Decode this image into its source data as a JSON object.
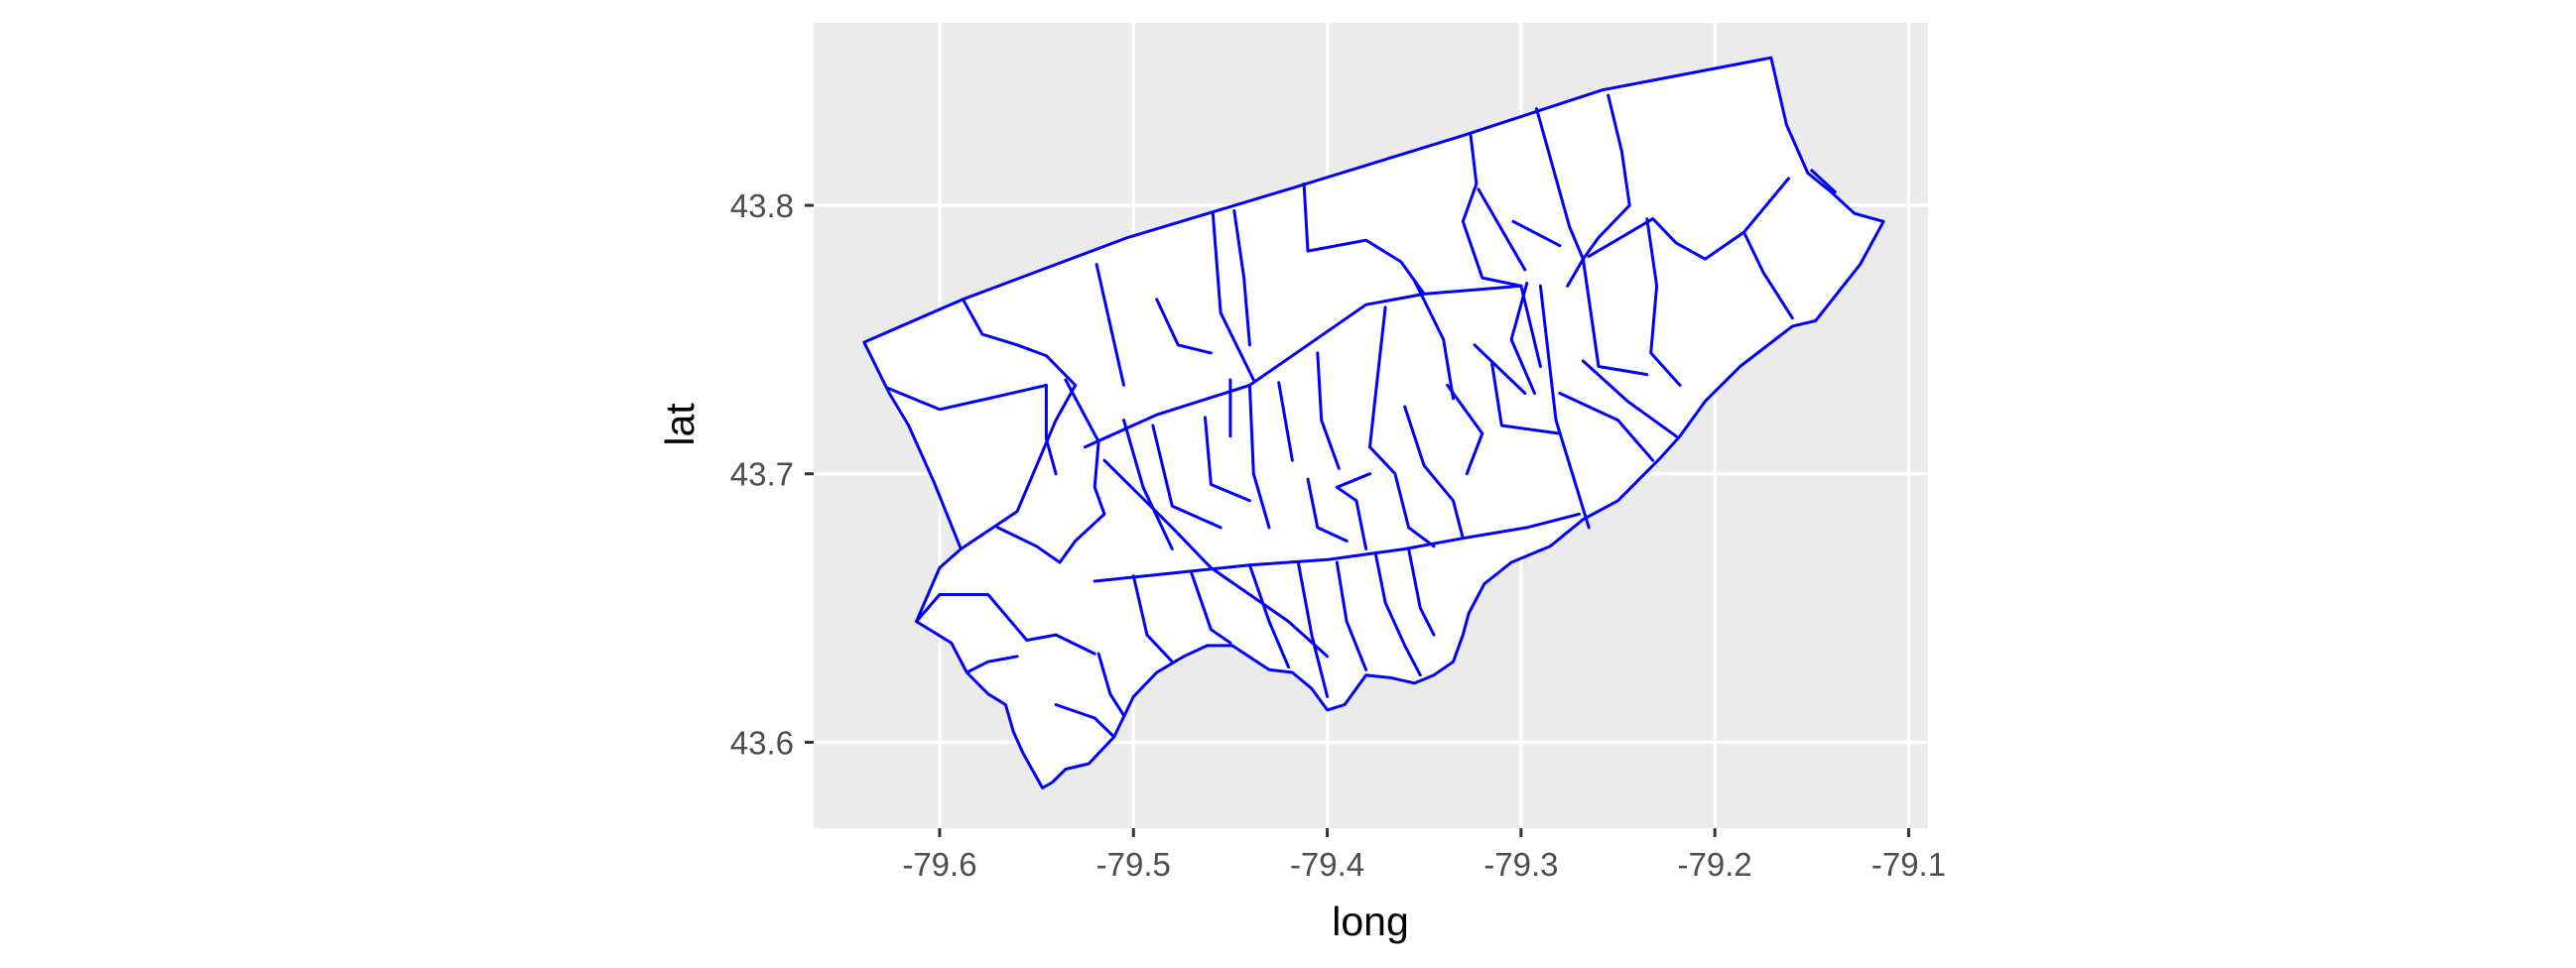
{
  "chart_data": {
    "type": "map",
    "xlabel": "long",
    "ylabel": "lat",
    "xlim": [
      -79.665,
      -79.09
    ],
    "ylim": [
      43.568,
      43.868
    ],
    "x_ticks": [
      -79.6,
      -79.5,
      -79.4,
      -79.3,
      -79.2,
      -79.1
    ],
    "y_ticks": [
      43.6,
      43.7,
      43.8
    ],
    "x_tick_labels": [
      "-79.6",
      "-79.5",
      "-79.4",
      "-79.3",
      "-79.2",
      "-79.1"
    ],
    "y_tick_labels": [
      "43.6",
      "43.7",
      "43.8"
    ],
    "grid": true,
    "legend": "none",
    "colors": {
      "panel_background": "#EBEBEB",
      "grid_major": "#FFFFFF",
      "region_fill": "#FFFFFF",
      "region_outline": "#0000FF"
    },
    "regions": {
      "outline": [
        [
          -79.639,
          43.749
        ],
        [
          -79.588,
          43.765
        ],
        [
          -79.503,
          43.788
        ],
        [
          -79.42,
          43.806
        ],
        [
          -79.33,
          43.826
        ],
        [
          -79.258,
          43.843
        ],
        [
          -79.171,
          43.855
        ],
        [
          -79.163,
          43.83
        ],
        [
          -79.152,
          43.812
        ],
        [
          -79.14,
          43.805
        ],
        [
          -79.128,
          43.797
        ],
        [
          -79.113,
          43.794
        ],
        [
          -79.125,
          43.778
        ],
        [
          -79.148,
          43.757
        ],
        [
          -79.16,
          43.755
        ],
        [
          -79.187,
          43.74
        ],
        [
          -79.205,
          43.727
        ],
        [
          -79.218,
          43.714
        ],
        [
          -79.228,
          43.706
        ],
        [
          -79.25,
          43.69
        ],
        [
          -79.268,
          43.683
        ],
        [
          -79.285,
          43.673
        ],
        [
          -79.305,
          43.667
        ],
        [
          -79.319,
          43.659
        ],
        [
          -79.327,
          43.648
        ],
        [
          -79.33,
          43.64
        ],
        [
          -79.335,
          43.63
        ],
        [
          -79.345,
          43.625
        ],
        [
          -79.355,
          43.622
        ],
        [
          -79.367,
          43.624
        ],
        [
          -79.38,
          43.625
        ],
        [
          -79.391,
          43.614
        ],
        [
          -79.4,
          43.612
        ],
        [
          -79.408,
          43.62
        ],
        [
          -79.418,
          43.626
        ],
        [
          -79.43,
          43.627
        ],
        [
          -79.449,
          43.636
        ],
        [
          -79.462,
          43.636
        ],
        [
          -79.474,
          43.632
        ],
        [
          -79.488,
          43.626
        ],
        [
          -79.5,
          43.617
        ],
        [
          -79.51,
          43.602
        ],
        [
          -79.523,
          43.592
        ],
        [
          -79.535,
          43.59
        ],
        [
          -79.542,
          43.585
        ],
        [
          -79.547,
          43.583
        ],
        [
          -79.557,
          43.596
        ],
        [
          -79.562,
          43.604
        ],
        [
          -79.566,
          43.614
        ],
        [
          -79.575,
          43.618
        ],
        [
          -79.586,
          43.626
        ],
        [
          -79.594,
          43.637
        ],
        [
          -79.612,
          43.645
        ],
        [
          -79.606,
          43.655
        ],
        [
          -79.6,
          43.665
        ],
        [
          -79.589,
          43.672
        ],
        [
          -79.603,
          43.697
        ],
        [
          -79.616,
          43.718
        ],
        [
          -79.626,
          43.73
        ],
        [
          -79.639,
          43.749
        ]
      ],
      "boundaries": [
        [
          [
            -79.589,
            43.672
          ],
          [
            -79.56,
            43.686
          ],
          [
            -79.54,
            43.72
          ],
          [
            -79.53,
            43.733
          ]
        ],
        [
          [
            -79.588,
            43.765
          ],
          [
            -79.578,
            43.752
          ],
          [
            -79.56,
            43.748
          ],
          [
            -79.545,
            43.744
          ],
          [
            -79.53,
            43.733
          ]
        ],
        [
          [
            -79.627,
            43.732
          ],
          [
            -79.6,
            43.724
          ],
          [
            -79.575,
            43.728
          ],
          [
            -79.545,
            43.733
          ]
        ],
        [
          [
            -79.535,
            43.735
          ],
          [
            -79.518,
            43.712
          ],
          [
            -79.52,
            43.695
          ],
          [
            -79.515,
            43.685
          ],
          [
            -79.53,
            43.675
          ],
          [
            -79.538,
            43.667
          ]
        ],
        [
          [
            -79.612,
            43.645
          ],
          [
            -79.6,
            43.655
          ],
          [
            -79.575,
            43.655
          ],
          [
            -79.555,
            43.638
          ],
          [
            -79.54,
            43.64
          ],
          [
            -79.52,
            43.633
          ]
        ],
        [
          [
            -79.586,
            43.626
          ],
          [
            -79.575,
            43.63
          ],
          [
            -79.56,
            43.632
          ]
        ],
        [
          [
            -79.538,
            43.667
          ],
          [
            -79.55,
            43.673
          ],
          [
            -79.57,
            43.68
          ]
        ],
        [
          [
            -79.545,
            43.733
          ],
          [
            -79.545,
            43.713
          ],
          [
            -79.54,
            43.7
          ]
        ],
        [
          [
            -79.525,
            43.71
          ],
          [
            -79.488,
            43.722
          ],
          [
            -79.44,
            43.733
          ],
          [
            -79.41,
            43.748
          ],
          [
            -79.38,
            43.763
          ],
          [
            -79.35,
            43.767
          ],
          [
            -79.3,
            43.77
          ]
        ],
        [
          [
            -79.519,
            43.778
          ],
          [
            -79.505,
            43.733
          ]
        ],
        [
          [
            -79.448,
            43.798
          ],
          [
            -79.443,
            43.773
          ],
          [
            -79.44,
            43.748
          ]
        ],
        [
          [
            -79.459,
            43.797
          ],
          [
            -79.455,
            43.76
          ],
          [
            -79.438,
            43.735
          ]
        ],
        [
          [
            -79.488,
            43.765
          ],
          [
            -79.477,
            43.748
          ],
          [
            -79.46,
            43.745
          ]
        ],
        [
          [
            -79.412,
            43.808
          ],
          [
            -79.41,
            43.783
          ],
          [
            -79.38,
            43.787
          ],
          [
            -79.362,
            43.779
          ],
          [
            -79.35,
            43.767
          ]
        ],
        [
          [
            -79.326,
            43.826
          ],
          [
            -79.323,
            43.808
          ],
          [
            -79.33,
            43.794
          ],
          [
            -79.32,
            43.773
          ],
          [
            -79.3,
            43.77
          ]
        ],
        [
          [
            -79.322,
            43.806
          ],
          [
            -79.298,
            43.776
          ]
        ],
        [
          [
            -79.292,
            43.836
          ],
          [
            -79.275,
            43.792
          ],
          [
            -79.268,
            43.78
          ]
        ],
        [
          [
            -79.255,
            43.841
          ],
          [
            -79.248,
            43.82
          ],
          [
            -79.244,
            43.8
          ],
          [
            -79.26,
            43.788
          ],
          [
            -79.268,
            43.78
          ],
          [
            -79.276,
            43.77
          ]
        ],
        [
          [
            -79.304,
            43.794
          ],
          [
            -79.28,
            43.785
          ]
        ],
        [
          [
            -79.297,
            43.771
          ],
          [
            -79.305,
            43.75
          ],
          [
            -79.293,
            43.73
          ]
        ],
        [
          [
            -79.3,
            43.77
          ],
          [
            -79.29,
            43.74
          ]
        ],
        [
          [
            -79.265,
            43.781
          ],
          [
            -79.232,
            43.795
          ],
          [
            -79.22,
            43.786
          ],
          [
            -79.205,
            43.78
          ],
          [
            -79.185,
            43.79
          ],
          [
            -79.162,
            43.81
          ]
        ],
        [
          [
            -79.15,
            43.813
          ],
          [
            -79.138,
            43.805
          ]
        ],
        [
          [
            -79.268,
            43.78
          ],
          [
            -79.26,
            43.74
          ],
          [
            -79.235,
            43.737
          ]
        ],
        [
          [
            -79.235,
            43.795
          ],
          [
            -79.23,
            43.77
          ],
          [
            -79.233,
            43.745
          ],
          [
            -79.218,
            43.733
          ]
        ],
        [
          [
            -79.185,
            43.79
          ],
          [
            -79.175,
            43.775
          ],
          [
            -79.16,
            43.758
          ]
        ],
        [
          [
            -79.268,
            43.742
          ],
          [
            -79.245,
            43.727
          ],
          [
            -79.22,
            43.714
          ]
        ],
        [
          [
            -79.28,
            43.73
          ],
          [
            -79.25,
            43.72
          ],
          [
            -79.232,
            43.705
          ]
        ],
        [
          [
            -79.45,
            43.714
          ],
          [
            -79.45,
            43.735
          ]
        ],
        [
          [
            -79.425,
            43.734
          ],
          [
            -79.418,
            43.705
          ]
        ],
        [
          [
            -79.405,
            43.745
          ],
          [
            -79.403,
            43.72
          ],
          [
            -79.394,
            43.702
          ]
        ],
        [
          [
            -79.37,
            43.762
          ],
          [
            -79.375,
            43.73
          ],
          [
            -79.378,
            43.71
          ]
        ],
        [
          [
            -79.355,
            43.772
          ],
          [
            -79.34,
            43.75
          ],
          [
            -79.335,
            43.728
          ]
        ],
        [
          [
            -79.324,
            43.748
          ],
          [
            -79.298,
            43.73
          ]
        ],
        [
          [
            -79.315,
            43.741
          ],
          [
            -79.31,
            43.718
          ],
          [
            -79.28,
            43.715
          ]
        ],
        [
          [
            -79.29,
            43.77
          ],
          [
            -79.282,
            43.72
          ],
          [
            -79.265,
            43.68
          ]
        ],
        [
          [
            -79.338,
            43.733
          ],
          [
            -79.32,
            43.715
          ],
          [
            -79.328,
            43.7
          ]
        ],
        [
          [
            -79.36,
            43.725
          ],
          [
            -79.35,
            43.703
          ],
          [
            -79.335,
            43.69
          ],
          [
            -79.33,
            43.676
          ]
        ],
        [
          [
            -79.378,
            43.71
          ],
          [
            -79.365,
            43.7
          ],
          [
            -79.358,
            43.68
          ],
          [
            -79.345,
            43.673
          ]
        ],
        [
          [
            -79.505,
            43.72
          ],
          [
            -79.495,
            43.695
          ],
          [
            -79.48,
            43.672
          ]
        ],
        [
          [
            -79.49,
            43.718
          ],
          [
            -79.48,
            43.688
          ],
          [
            -79.455,
            43.68
          ]
        ],
        [
          [
            -79.463,
            43.721
          ],
          [
            -79.46,
            43.696
          ],
          [
            -79.44,
            43.69
          ]
        ],
        [
          [
            -79.44,
            43.733
          ],
          [
            -79.438,
            43.7
          ],
          [
            -79.43,
            43.68
          ]
        ],
        [
          [
            -79.41,
            43.698
          ],
          [
            -79.405,
            43.68
          ],
          [
            -79.39,
            43.675
          ]
        ],
        [
          [
            -79.515,
            43.705
          ],
          [
            -79.48,
            43.68
          ],
          [
            -79.46,
            43.665
          ],
          [
            -79.44,
            43.655
          ],
          [
            -79.42,
            43.645
          ],
          [
            -79.4,
            43.632
          ]
        ],
        [
          [
            -79.52,
            43.66
          ],
          [
            -79.48,
            43.663
          ],
          [
            -79.44,
            43.666
          ],
          [
            -79.4,
            43.668
          ],
          [
            -79.36,
            43.672
          ],
          [
            -79.33,
            43.676
          ],
          [
            -79.297,
            43.68
          ],
          [
            -79.27,
            43.685
          ]
        ],
        [
          [
            -79.5,
            43.662
          ],
          [
            -79.493,
            43.64
          ],
          [
            -79.48,
            43.63
          ]
        ],
        [
          [
            -79.47,
            43.663
          ],
          [
            -79.46,
            43.642
          ],
          [
            -79.45,
            43.637
          ]
        ],
        [
          [
            -79.44,
            43.666
          ],
          [
            -79.43,
            43.645
          ],
          [
            -79.42,
            43.628
          ]
        ],
        [
          [
            -79.415,
            43.667
          ],
          [
            -79.408,
            43.64
          ],
          [
            -79.4,
            43.617
          ]
        ],
        [
          [
            -79.395,
            43.667
          ],
          [
            -79.39,
            43.645
          ],
          [
            -79.38,
            43.627
          ]
        ],
        [
          [
            -79.375,
            43.67
          ],
          [
            -79.37,
            43.652
          ],
          [
            -79.36,
            43.636
          ],
          [
            -79.352,
            43.625
          ]
        ],
        [
          [
            -79.358,
            43.672
          ],
          [
            -79.352,
            43.65
          ],
          [
            -79.345,
            43.64
          ]
        ],
        [
          [
            -79.518,
            43.633
          ],
          [
            -79.512,
            43.618
          ],
          [
            -79.505,
            43.61
          ]
        ],
        [
          [
            -79.54,
            43.614
          ],
          [
            -79.52,
            43.609
          ],
          [
            -79.51,
            43.602
          ]
        ],
        [
          [
            -79.38,
            43.672
          ],
          [
            -79.385,
            43.69
          ],
          [
            -79.395,
            43.695
          ],
          [
            -79.378,
            43.7
          ]
        ]
      ]
    }
  }
}
